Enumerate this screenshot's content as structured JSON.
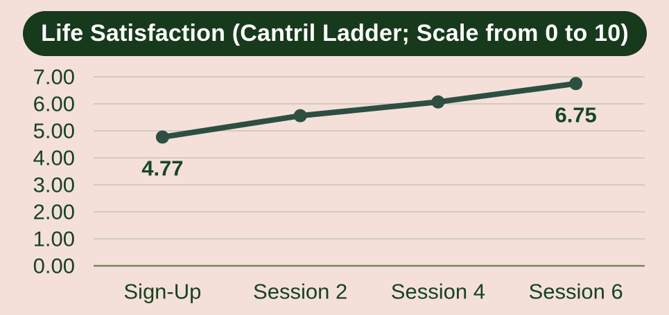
{
  "title": "Life Satisfaction (Cantril Ladder; Scale from 0 to 10)",
  "colors": {
    "background": "#f4e0d9",
    "title_pill": "#17391c",
    "title_text": "#ffffff",
    "axis_text": "#17431f",
    "gridline": "#c6c2b4",
    "axis_line": "#75855e",
    "series": "#2c4f42",
    "point_label": "#174723"
  },
  "chart_data": {
    "type": "line",
    "title": "Life Satisfaction (Cantril Ladder; Scale from 0 to 10)",
    "categories": [
      "Sign-Up",
      "Session 2",
      "Session 4",
      "Session 6"
    ],
    "values": [
      4.77,
      5.56,
      6.07,
      6.75
    ],
    "labeled_points": [
      {
        "index": 0,
        "label": "4.77"
      },
      {
        "index": 3,
        "label": "6.75"
      }
    ],
    "xlabel": "",
    "ylabel": "",
    "ylim": [
      0,
      7
    ],
    "ytick_labels": [
      "0.00",
      "1.00",
      "2.00",
      "3.00",
      "4.00",
      "5.00",
      "6.00",
      "7.00"
    ],
    "grid": true,
    "legend": "none"
  }
}
